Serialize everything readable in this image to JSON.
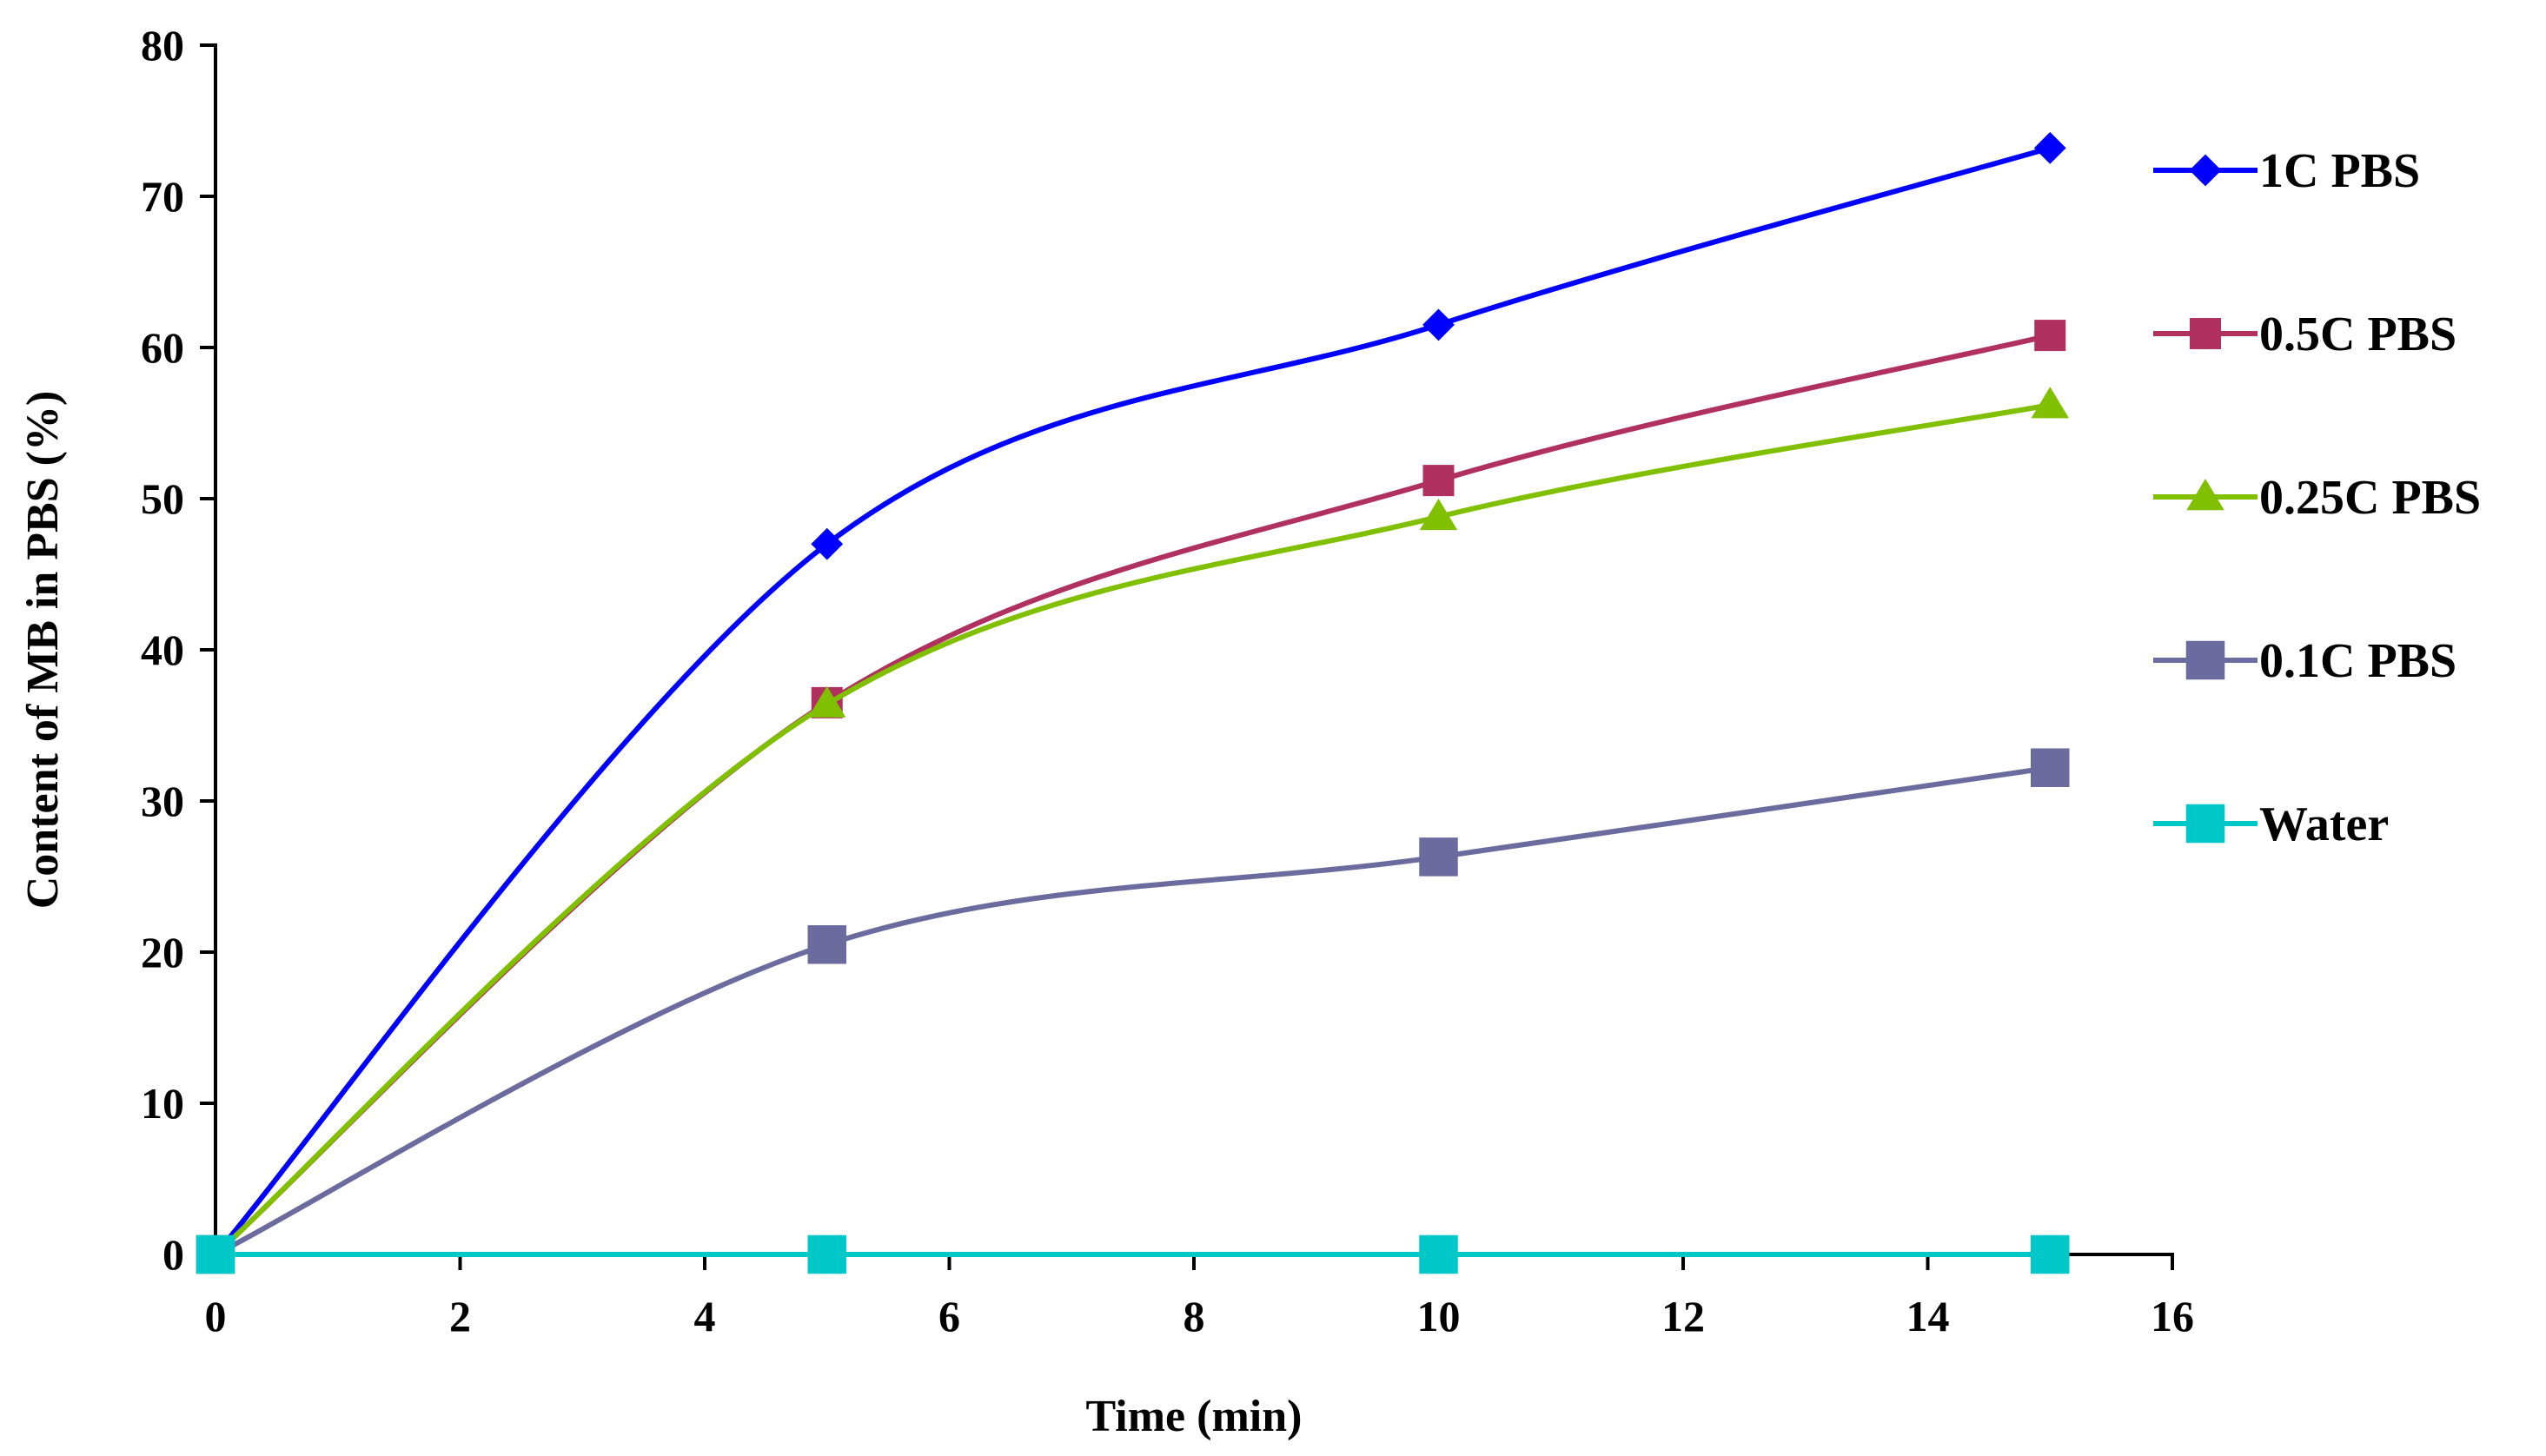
{
  "chart_data": {
    "type": "line",
    "title": "",
    "xlabel": "Time (min)",
    "ylabel": "Content of MB in PBS (%)",
    "xlim": [
      0,
      16
    ],
    "ylim": [
      0,
      80
    ],
    "xticks": [
      "0",
      "2",
      "4",
      "6",
      "8",
      "10",
      "12",
      "14",
      "16"
    ],
    "yticks": [
      "0",
      "10",
      "20",
      "30",
      "40",
      "50",
      "60",
      "70",
      "80"
    ],
    "x": [
      0,
      5,
      10,
      15
    ],
    "grid": false,
    "legend_position": "right",
    "series": [
      {
        "name": "1C PBS",
        "values": [
          0,
          47,
          61.5,
          73.2
        ],
        "color": "#0000ff",
        "marker": "diamond"
      },
      {
        "name": "0.5C PBS",
        "values": [
          0,
          36.5,
          51.2,
          60.8
        ],
        "color": "#b03060",
        "marker": "square"
      },
      {
        "name": "0.25C PBS",
        "values": [
          0,
          36.4,
          48.8,
          56.2
        ],
        "color": "#80c000",
        "marker": "triangle"
      },
      {
        "name": "0.1C PBS",
        "values": [
          0,
          20.5,
          26.3,
          32.2
        ],
        "color": "#6b6b9f",
        "marker": "square"
      },
      {
        "name": "Water",
        "values": [
          0,
          0,
          0,
          0
        ],
        "color": "#00c8c8",
        "marker": "square"
      }
    ]
  }
}
